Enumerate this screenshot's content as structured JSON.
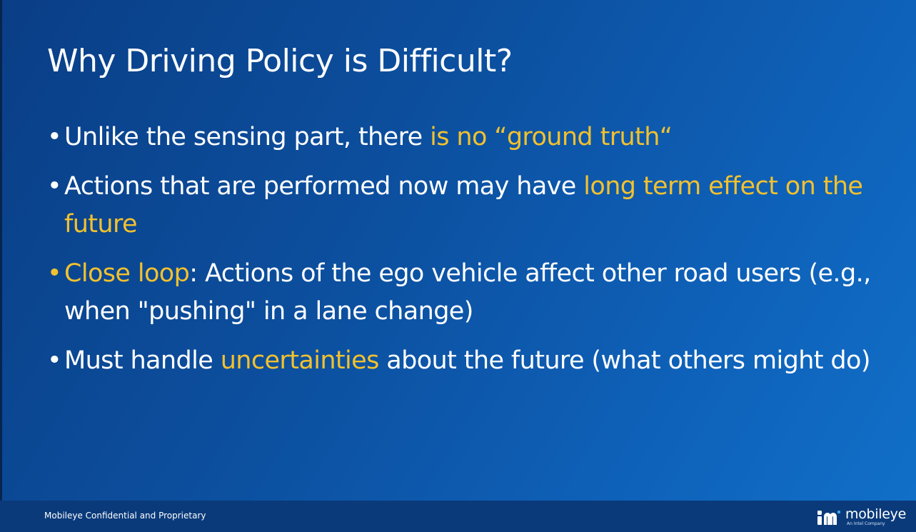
{
  "slide": {
    "title": "Why Driving Policy is Difficult?",
    "bullet_char": "•",
    "bullets": [
      {
        "segments": [
          {
            "text": "Unlike the sensing part, there ",
            "highlight": false
          },
          {
            "text": "is no “ground truth“",
            "highlight": true
          }
        ]
      },
      {
        "segments": [
          {
            "text": "Actions that are performed now may have ",
            "highlight": false
          },
          {
            "text": "long term effect on the future",
            "highlight": true
          }
        ]
      },
      {
        "segments": [
          {
            "text": "Close loop",
            "highlight": true
          },
          {
            "text": ": Actions of the ego vehicle affect other road users (e.g., when \"pushing\" in a lane change)",
            "highlight": false
          }
        ]
      },
      {
        "segments": [
          {
            "text": "Must handle ",
            "highlight": false
          },
          {
            "text": "uncertainties",
            "highlight": true
          },
          {
            "text": " about the future (what others might do)",
            "highlight": false
          }
        ]
      }
    ]
  },
  "footer": {
    "confidential": "Mobileye Confidential and Proprietary",
    "logo_word": "mobileye",
    "logo_sub": "An Intel Company",
    "logo_icon": "mobileye-logo-icon"
  },
  "colors": {
    "background": "#0c4f9e",
    "text": "#ffffff",
    "highlight": "#f2c12e",
    "footer": "#0a3a7a"
  }
}
